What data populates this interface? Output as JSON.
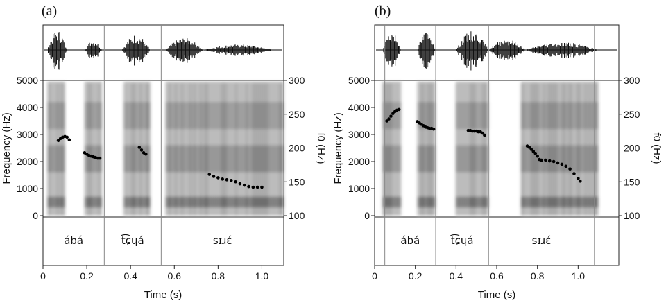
{
  "chart_data": [
    {
      "panel": "(a)",
      "type": "scatter",
      "xlabel": "Time (s)",
      "ylabel": "Frequency (Hz)",
      "y2label": "f0 (Hz)",
      "xlim": [
        0,
        1.1
      ],
      "xticks": [
        "0",
        "0.2",
        "0.4",
        "0.6",
        "0.8",
        "1.0"
      ],
      "ylim": [
        0,
        5000
      ],
      "yticks": [
        "0",
        "1000",
        "2000",
        "3000",
        "4000",
        "5000"
      ],
      "y2lim": [
        100,
        300
      ],
      "y2ticks": [
        "100",
        "150",
        "200",
        "250",
        "300"
      ],
      "segments": [
        {
          "label": "ábá",
          "start": 0.0,
          "end": 0.28
        },
        {
          "label": "t͡ɕɥá",
          "start": 0.28,
          "end": 0.54
        },
        {
          "label": "sɪɹɛ́",
          "start": 0.54,
          "end": 1.1
        }
      ],
      "voiced_regions": [
        [
          0.02,
          0.1
        ],
        [
          0.19,
          0.27
        ],
        [
          0.37,
          0.49
        ],
        [
          0.56,
          1.1
        ]
      ],
      "waveform_regions": [
        [
          0.02,
          0.11,
          0.9
        ],
        [
          0.19,
          0.27,
          0.45
        ],
        [
          0.36,
          0.49,
          0.7
        ],
        [
          0.56,
          0.73,
          0.55
        ],
        [
          0.73,
          1.05,
          0.25
        ]
      ],
      "f0": [
        {
          "x": 0.07,
          "y": 211
        },
        {
          "x": 0.08,
          "y": 214
        },
        {
          "x": 0.09,
          "y": 216
        },
        {
          "x": 0.1,
          "y": 217
        },
        {
          "x": 0.11,
          "y": 216
        },
        {
          "x": 0.12,
          "y": 212
        },
        {
          "x": 0.19,
          "y": 193
        },
        {
          "x": 0.2,
          "y": 191
        },
        {
          "x": 0.21,
          "y": 189
        },
        {
          "x": 0.22,
          "y": 188
        },
        {
          "x": 0.23,
          "y": 187
        },
        {
          "x": 0.24,
          "y": 186
        },
        {
          "x": 0.25,
          "y": 185
        },
        {
          "x": 0.26,
          "y": 185
        },
        {
          "x": 0.44,
          "y": 201
        },
        {
          "x": 0.45,
          "y": 197
        },
        {
          "x": 0.46,
          "y": 193
        },
        {
          "x": 0.47,
          "y": 191
        },
        {
          "x": 0.76,
          "y": 161
        },
        {
          "x": 0.78,
          "y": 158
        },
        {
          "x": 0.8,
          "y": 156
        },
        {
          "x": 0.82,
          "y": 154
        },
        {
          "x": 0.84,
          "y": 153
        },
        {
          "x": 0.86,
          "y": 152
        },
        {
          "x": 0.88,
          "y": 150
        },
        {
          "x": 0.9,
          "y": 147
        },
        {
          "x": 0.92,
          "y": 145
        },
        {
          "x": 0.94,
          "y": 143
        },
        {
          "x": 0.96,
          "y": 142
        },
        {
          "x": 0.98,
          "y": 142
        },
        {
          "x": 1.0,
          "y": 142
        }
      ]
    },
    {
      "panel": "(b)",
      "type": "scatter",
      "xlabel": "Time (s)",
      "ylabel": "Frequency (Hz)",
      "y2label": "f0 (Hz)",
      "xlim": [
        0,
        1.2
      ],
      "xticks": [
        "0",
        "0.2",
        "0.4",
        "0.6",
        "0.8",
        "1.0"
      ],
      "ylim": [
        0,
        5000
      ],
      "yticks": [
        "0",
        "1000",
        "2000",
        "3000",
        "4000",
        "5000"
      ],
      "y2lim": [
        100,
        300
      ],
      "y2ticks": [
        "100",
        "150",
        "200",
        "250",
        "300"
      ],
      "segments": [
        {
          "label": "ábá",
          "start": 0.05,
          "end": 0.3
        },
        {
          "label": "t͡ɕɥá",
          "start": 0.3,
          "end": 0.56
        },
        {
          "label": "sɪɹɛ́",
          "start": 0.56,
          "end": 1.08
        }
      ],
      "voiced_regions": [
        [
          0.04,
          0.13
        ],
        [
          0.21,
          0.3
        ],
        [
          0.4,
          0.56
        ],
        [
          0.72,
          1.1
        ]
      ],
      "waveform_regions": [
        [
          0.04,
          0.13,
          0.85
        ],
        [
          0.21,
          0.3,
          0.85
        ],
        [
          0.4,
          0.56,
          0.85
        ],
        [
          0.56,
          0.74,
          0.5
        ],
        [
          0.74,
          1.1,
          0.35
        ]
      ],
      "f0": [
        {
          "x": 0.06,
          "y": 240
        },
        {
          "x": 0.07,
          "y": 243
        },
        {
          "x": 0.08,
          "y": 247
        },
        {
          "x": 0.09,
          "y": 251
        },
        {
          "x": 0.1,
          "y": 254
        },
        {
          "x": 0.11,
          "y": 256
        },
        {
          "x": 0.12,
          "y": 257
        },
        {
          "x": 0.21,
          "y": 239
        },
        {
          "x": 0.22,
          "y": 237
        },
        {
          "x": 0.23,
          "y": 235
        },
        {
          "x": 0.24,
          "y": 233
        },
        {
          "x": 0.25,
          "y": 231
        },
        {
          "x": 0.26,
          "y": 230
        },
        {
          "x": 0.27,
          "y": 229
        },
        {
          "x": 0.28,
          "y": 229
        },
        {
          "x": 0.29,
          "y": 228
        },
        {
          "x": 0.46,
          "y": 226
        },
        {
          "x": 0.47,
          "y": 226
        },
        {
          "x": 0.48,
          "y": 225
        },
        {
          "x": 0.49,
          "y": 225
        },
        {
          "x": 0.5,
          "y": 225
        },
        {
          "x": 0.51,
          "y": 224
        },
        {
          "x": 0.52,
          "y": 224
        },
        {
          "x": 0.53,
          "y": 222
        },
        {
          "x": 0.54,
          "y": 219
        },
        {
          "x": 0.75,
          "y": 203
        },
        {
          "x": 0.76,
          "y": 201
        },
        {
          "x": 0.77,
          "y": 198
        },
        {
          "x": 0.78,
          "y": 195
        },
        {
          "x": 0.79,
          "y": 192
        },
        {
          "x": 0.8,
          "y": 188
        },
        {
          "x": 0.81,
          "y": 183
        },
        {
          "x": 0.82,
          "y": 182
        },
        {
          "x": 0.84,
          "y": 182
        },
        {
          "x": 0.86,
          "y": 181
        },
        {
          "x": 0.88,
          "y": 180
        },
        {
          "x": 0.9,
          "y": 178
        },
        {
          "x": 0.92,
          "y": 176
        },
        {
          "x": 0.94,
          "y": 173
        },
        {
          "x": 0.96,
          "y": 169
        },
        {
          "x": 0.98,
          "y": 162
        },
        {
          "x": 1.0,
          "y": 155
        },
        {
          "x": 1.01,
          "y": 151
        }
      ]
    }
  ]
}
